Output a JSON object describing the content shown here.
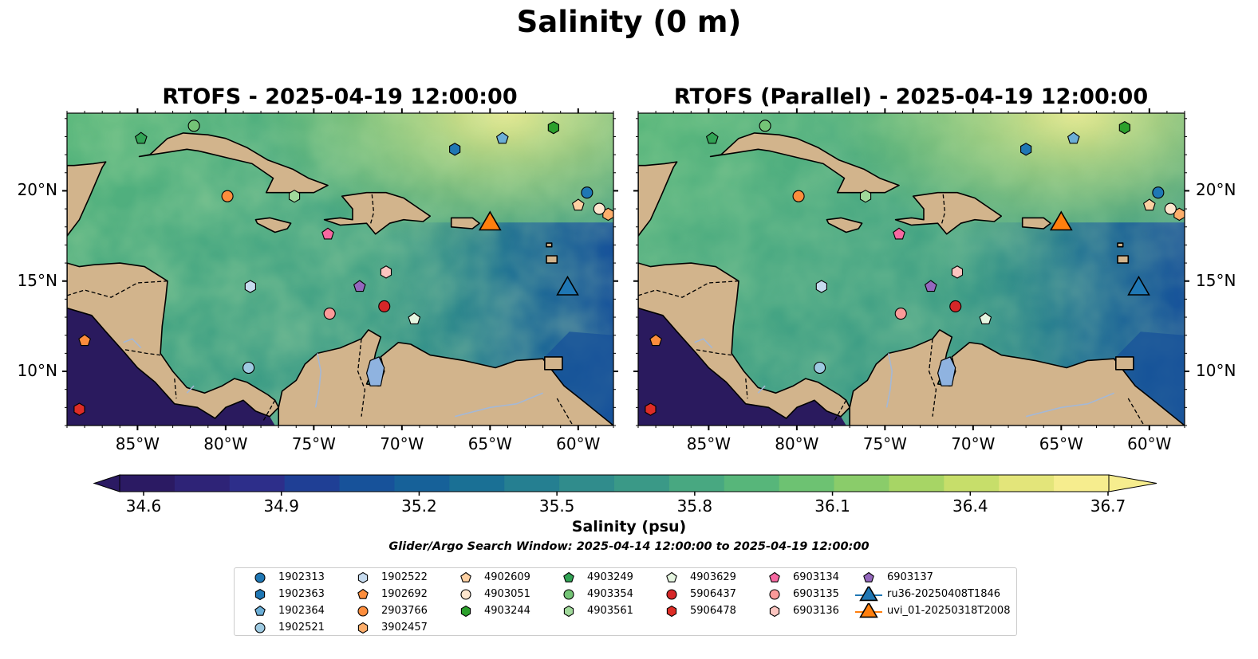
{
  "figure": {
    "suptitle": "Salinity (0 m)",
    "panels": [
      {
        "title": "RTOFS - 2025-04-19 12:00:00"
      },
      {
        "title": "RTOFS (Parallel) - 2025-04-19 12:00:00"
      }
    ]
  },
  "map": {
    "extent_lon": [
      -89,
      -58
    ],
    "extent_lat": [
      7,
      24.3
    ],
    "lon_ticks": [
      "85°W",
      "80°W",
      "75°W",
      "70°W",
      "65°W",
      "60°W"
    ],
    "lon_tick_values": [
      -85,
      -80,
      -75,
      -70,
      -65,
      -60
    ],
    "lat_ticks": [
      "20°N",
      "15°N",
      "10°N"
    ],
    "lat_tick_values": [
      20,
      15,
      10
    ],
    "land_color": "#d2b48c",
    "deep_water_color": "#2a1a5e",
    "river_color": "#a4b8d6"
  },
  "chart_data": {
    "type": "heatmap",
    "variable": "Salinity (psu)",
    "colorbar": {
      "label": "Salinity (psu)",
      "ticks": [
        "34.6",
        "34.9",
        "35.2",
        "35.5",
        "35.8",
        "36.1",
        "36.4",
        "36.7"
      ],
      "tick_values": [
        34.6,
        34.9,
        35.2,
        35.5,
        35.8,
        36.1,
        36.4,
        36.7
      ],
      "min": 34.6,
      "max": 36.7,
      "colors": [
        "#2b1a63",
        "#2e2377",
        "#2d2e8a",
        "#1f3f95",
        "#17529a",
        "#166199",
        "#1a7095",
        "#257f91",
        "#308c8c",
        "#3a9987",
        "#48a881",
        "#57b67a",
        "#6dc272",
        "#8acc6a",
        "#a7d565",
        "#c7de6a",
        "#e3e57a",
        "#f6ed8e"
      ]
    },
    "search_window": "Glider/Argo Search Window: 2025-04-14 12:00:00 to 2025-04-19 12:00:00",
    "markers": [
      {
        "id": "1902313",
        "shape": "circle",
        "color": "#1f77b4",
        "lon": -59.5,
        "lat": 19.9
      },
      {
        "id": "1902363",
        "shape": "hexagon",
        "color": "#1f77b4",
        "lon": -67.0,
        "lat": 22.3
      },
      {
        "id": "1902364",
        "shape": "pentagon",
        "color": "#6baed6",
        "lon": -64.3,
        "lat": 22.9
      },
      {
        "id": "1902521",
        "shape": "circle",
        "color": "#9ecae1",
        "lon": -78.7,
        "lat": 10.2
      },
      {
        "id": "1902522",
        "shape": "hexagon",
        "color": "#c6dbef",
        "lon": -78.6,
        "lat": 14.7
      },
      {
        "id": "1902692",
        "shape": "pentagon",
        "color": "#fd8d3c",
        "lon": -88.0,
        "lat": 11.7
      },
      {
        "id": "2903766",
        "shape": "circle",
        "color": "#fd8d3c",
        "lon": -79.9,
        "lat": 19.7
      },
      {
        "id": "3902457",
        "shape": "hexagon",
        "color": "#fdae6b",
        "lon": -58.3,
        "lat": 18.7
      },
      {
        "id": "4902609",
        "shape": "pentagon",
        "color": "#fdd0a2",
        "lon": -60.0,
        "lat": 19.2
      },
      {
        "id": "4903051",
        "shape": "circle",
        "color": "#fee6ce",
        "lon": -58.8,
        "lat": 19.0
      },
      {
        "id": "4903244",
        "shape": "hexagon",
        "color": "#2ca02c",
        "lon": -61.4,
        "lat": 23.5
      },
      {
        "id": "4903249",
        "shape": "pentagon",
        "color": "#31a354",
        "lon": -84.8,
        "lat": 22.9
      },
      {
        "id": "4903354",
        "shape": "circle",
        "color": "#74c476",
        "lon": -81.8,
        "lat": 23.6
      },
      {
        "id": "4903561",
        "shape": "hexagon",
        "color": "#a1d99b",
        "lon": -76.1,
        "lat": 19.7
      },
      {
        "id": "4903629",
        "shape": "pentagon",
        "color": "#e5f5e0",
        "lon": -69.3,
        "lat": 12.9
      },
      {
        "id": "5906437",
        "shape": "circle",
        "color": "#d62728",
        "lon": -71.0,
        "lat": 13.6
      },
      {
        "id": "5906478",
        "shape": "hexagon",
        "color": "#de2d26",
        "lon": -88.3,
        "lat": 7.9
      },
      {
        "id": "6903134",
        "shape": "pentagon",
        "color": "#f768a1",
        "lon": -74.2,
        "lat": 17.6
      },
      {
        "id": "6903135",
        "shape": "circle",
        "color": "#fb9a99",
        "lon": -74.1,
        "lat": 13.2
      },
      {
        "id": "6903136",
        "shape": "hexagon",
        "color": "#fcc5c0",
        "lon": -70.9,
        "lat": 15.5
      },
      {
        "id": "6903137",
        "shape": "pentagon",
        "color": "#9467bd",
        "lon": -72.4,
        "lat": 14.7
      },
      {
        "id": "ru36-20250408T1846",
        "shape": "triangle",
        "color": "#1f77b4",
        "lon": -60.6,
        "lat": 14.7
      },
      {
        "id": "uvi_01-20250318T2008",
        "shape": "triangle",
        "color": "#ff7f0e",
        "lon": -65.0,
        "lat": 18.3
      }
    ]
  }
}
